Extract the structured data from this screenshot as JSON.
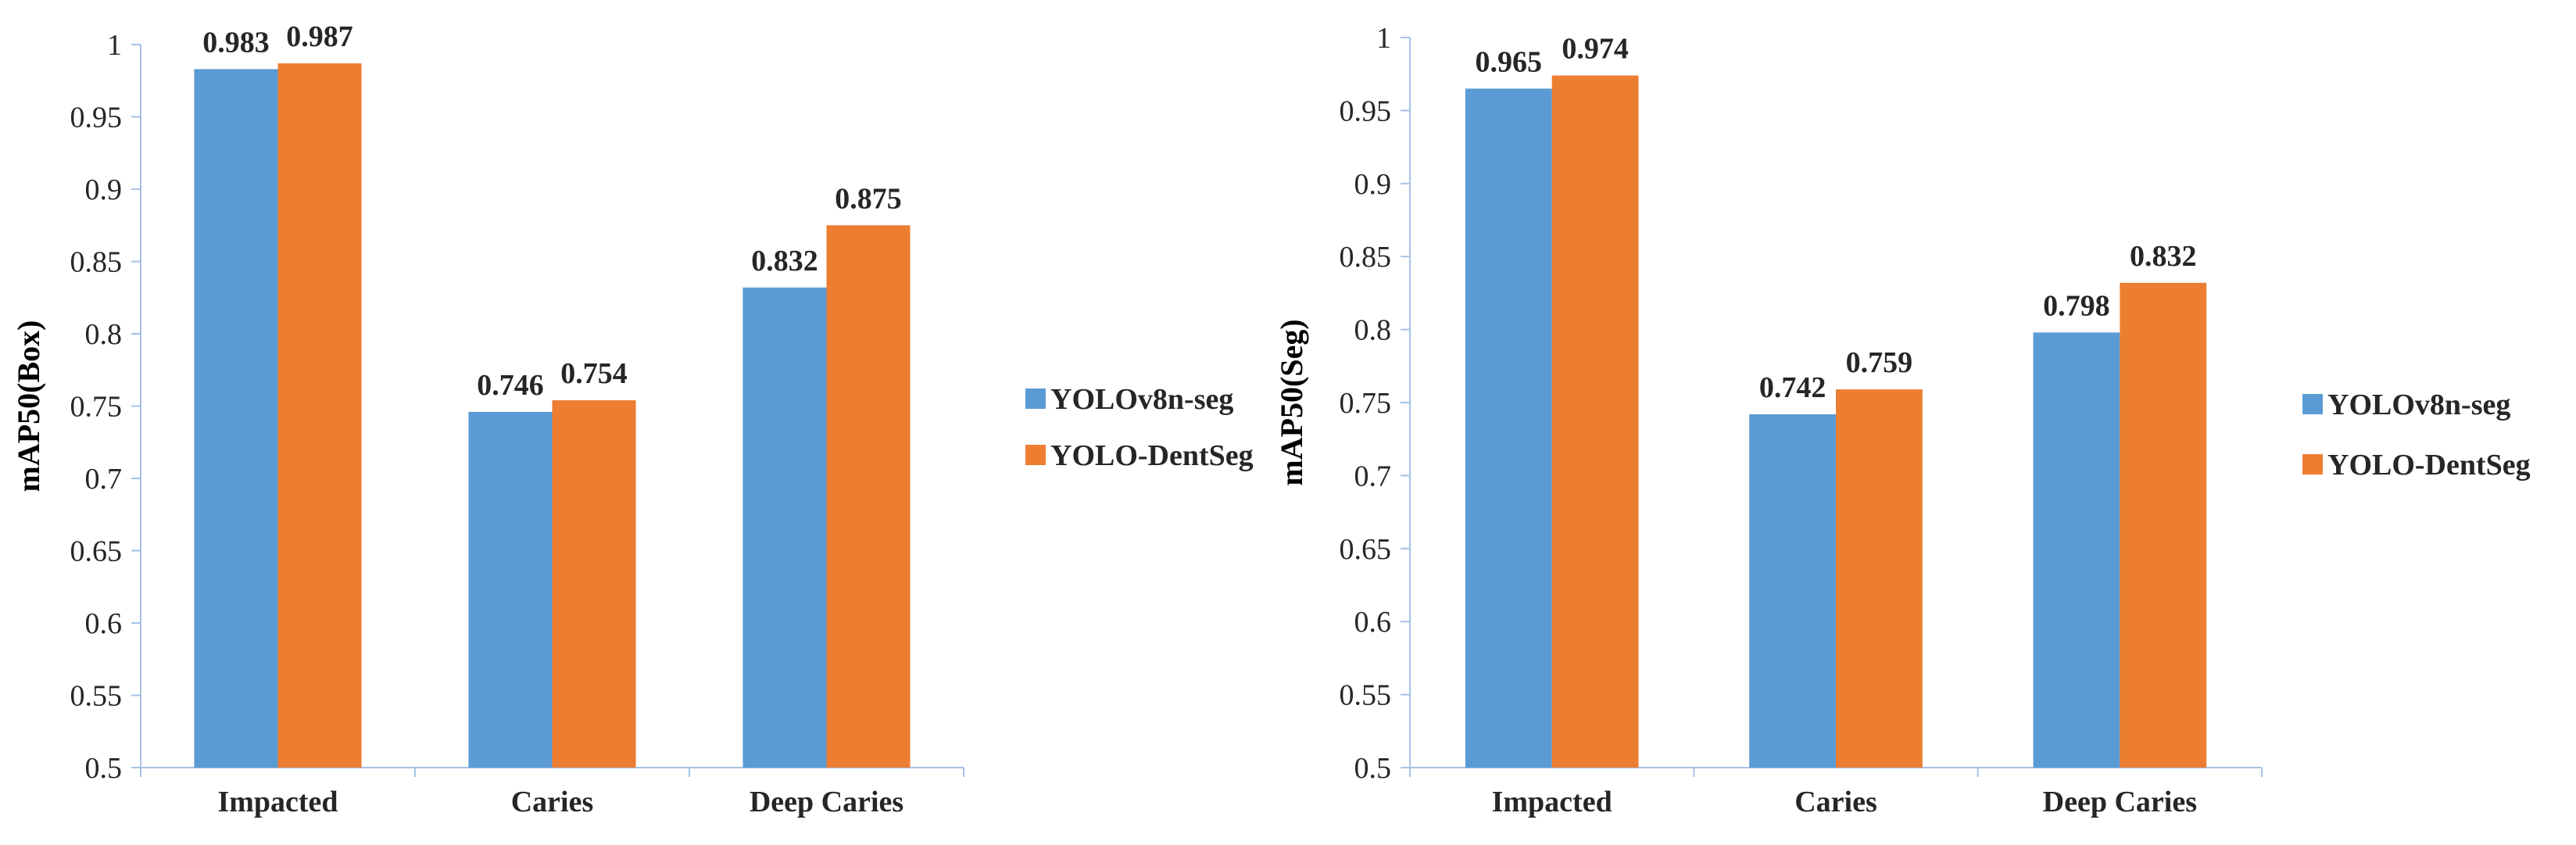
{
  "colors": {
    "series_1": "#5B9BD5",
    "series_2": "#ED7D31",
    "axis": "#A6C2E6",
    "text": "#262626"
  },
  "chart_data": [
    {
      "type": "bar",
      "categories": [
        "Impacted",
        "Caries",
        "Deep Caries"
      ],
      "series": [
        {
          "name": "YOLOv8n-seg",
          "values": [
            0.983,
            0.746,
            0.832
          ]
        },
        {
          "name": "YOLO-DentSeg",
          "values": [
            0.987,
            0.754,
            0.875
          ]
        }
      ],
      "data_labels": [
        [
          "0.983",
          "0.746",
          "0.832"
        ],
        [
          "0.987",
          "0.754",
          "0.875"
        ]
      ],
      "yticks": [
        "0.5",
        "0.55",
        "0.6",
        "0.65",
        "0.7",
        "0.75",
        "0.8",
        "0.85",
        "0.9",
        "0.95",
        "1"
      ],
      "title": "",
      "xlabel": "",
      "ylabel": "mAP50(Box)",
      "ylim": [
        0.5,
        1
      ],
      "grid": false,
      "legend_position": "right"
    },
    {
      "type": "bar",
      "categories": [
        "Impacted",
        "Caries",
        "Deep Caries"
      ],
      "series": [
        {
          "name": "YOLOv8n-seg",
          "values": [
            0.965,
            0.742,
            0.798
          ]
        },
        {
          "name": "YOLO-DentSeg",
          "values": [
            0.974,
            0.759,
            0.832
          ]
        }
      ],
      "data_labels": [
        [
          "0.965",
          "0.742",
          "0.798"
        ],
        [
          "0.974",
          "0.759",
          "0.832"
        ]
      ],
      "yticks": [
        "0.5",
        "0.55",
        "0.6",
        "0.65",
        "0.7",
        "0.75",
        "0.8",
        "0.85",
        "0.9",
        "0.95",
        "1"
      ],
      "title": "",
      "xlabel": "",
      "ylabel": "mAP50(Seg)",
      "ylim": [
        0.5,
        1
      ],
      "grid": false,
      "legend_position": "right"
    }
  ]
}
